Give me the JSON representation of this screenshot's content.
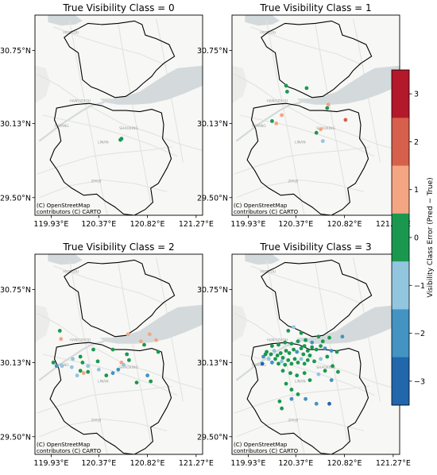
{
  "attribution": [
    "(C) OpenStreetMap",
    "contributors (C) CARTO"
  ],
  "x_ticks": [
    "119.93°E",
    "120.37°E",
    "120.82°E",
    "121.27°E"
  ],
  "y_ticks": [
    "30.75°N",
    "30.13°N",
    "29.50°N"
  ],
  "map_labels": [
    "HUZHOU",
    "HANGZHOU",
    "SHAOXING",
    "FUYANG",
    "LINAN",
    "ZHUJI"
  ],
  "panels": [
    {
      "title": "True Visibility Class = 0",
      "points": [
        [
          120.57,
          29.99,
          0
        ],
        [
          120.58,
          30.0,
          0
        ]
      ]
    },
    {
      "title": "True Visibility Class = 1",
      "points": [
        [
          120.28,
          30.45,
          0
        ],
        [
          120.29,
          30.4,
          0
        ],
        [
          120.47,
          30.43,
          0
        ],
        [
          120.15,
          30.15,
          0
        ],
        [
          120.19,
          30.13,
          1
        ],
        [
          120.24,
          30.2,
          1
        ],
        [
          120.66,
          30.26,
          0
        ],
        [
          120.67,
          30.29,
          1
        ],
        [
          120.83,
          30.16,
          2
        ],
        [
          120.56,
          30.05,
          0
        ],
        [
          120.6,
          30.08,
          1
        ],
        [
          120.62,
          29.98,
          -1
        ]
      ]
    },
    {
      "title": "True Visibility Class = 2",
      "points": [
        [
          120.01,
          30.4,
          0
        ],
        [
          120.02,
          30.33,
          1
        ],
        [
          120.64,
          30.37,
          1
        ],
        [
          120.84,
          30.37,
          1
        ],
        [
          120.76,
          30.31,
          1
        ],
        [
          120.79,
          30.28,
          0
        ],
        [
          120.92,
          30.22,
          0
        ],
        [
          120.9,
          30.32,
          1
        ],
        [
          120.5,
          30.24,
          0
        ],
        [
          120.63,
          30.2,
          0
        ],
        [
          120.2,
          30.18,
          0
        ],
        [
          120.22,
          30.13,
          0
        ],
        [
          120.32,
          30.24,
          0
        ],
        [
          120.36,
          30.14,
          0
        ],
        [
          120.13,
          30.16,
          -1
        ],
        [
          119.95,
          30.13,
          0
        ],
        [
          119.98,
          30.1,
          -2
        ],
        [
          120.03,
          30.1,
          -1
        ],
        [
          120.12,
          30.09,
          -1
        ],
        [
          120.2,
          30.06,
          0
        ],
        [
          120.23,
          30.04,
          1
        ],
        [
          120.17,
          30.02,
          -1
        ],
        [
          120.27,
          30.1,
          -1
        ],
        [
          120.27,
          30.05,
          0
        ],
        [
          120.37,
          30.07,
          -1
        ],
        [
          120.44,
          30.02,
          0
        ],
        [
          120.5,
          30.04,
          -2
        ],
        [
          120.55,
          30.07,
          -2
        ],
        [
          120.58,
          30.13,
          1
        ],
        [
          120.6,
          30.11,
          -1
        ],
        [
          120.65,
          30.15,
          0
        ],
        [
          120.72,
          29.96,
          0
        ],
        [
          120.82,
          30.02,
          -2
        ],
        [
          120.85,
          29.97,
          0
        ]
      ]
    },
    {
      "title": "True Visibility Class = 3",
      "points": [
        [
          120.1,
          30.22,
          0
        ],
        [
          120.14,
          30.2,
          0
        ],
        [
          120.17,
          30.23,
          -1
        ],
        [
          120.2,
          30.19,
          0
        ],
        [
          120.23,
          30.21,
          0
        ],
        [
          120.25,
          30.17,
          0
        ],
        [
          120.28,
          30.23,
          0
        ],
        [
          120.31,
          30.21,
          0
        ],
        [
          120.35,
          30.24,
          0
        ],
        [
          120.38,
          30.22,
          -2
        ],
        [
          120.42,
          30.25,
          0
        ],
        [
          120.45,
          30.27,
          0
        ],
        [
          120.48,
          30.23,
          0
        ],
        [
          120.52,
          30.26,
          0
        ],
        [
          120.56,
          30.24,
          0
        ],
        [
          120.6,
          30.27,
          0
        ],
        [
          120.64,
          30.25,
          -2
        ],
        [
          120.7,
          30.23,
          -2
        ],
        [
          120.75,
          30.22,
          0
        ],
        [
          120.3,
          30.4,
          0
        ],
        [
          120.35,
          30.43,
          -1
        ],
        [
          120.42,
          30.38,
          0
        ],
        [
          120.46,
          30.32,
          0
        ],
        [
          120.52,
          30.3,
          -2
        ],
        [
          120.8,
          30.35,
          -2
        ],
        [
          120.68,
          30.34,
          0
        ],
        [
          120.58,
          30.35,
          0
        ],
        [
          120.62,
          30.31,
          0
        ],
        [
          120.12,
          30.16,
          -1
        ],
        [
          120.15,
          30.13,
          -2
        ],
        [
          120.18,
          30.16,
          0
        ],
        [
          120.21,
          30.12,
          0
        ],
        [
          120.24,
          30.14,
          -1
        ],
        [
          120.27,
          30.11,
          0
        ],
        [
          120.3,
          30.15,
          0
        ],
        [
          120.33,
          30.12,
          0
        ],
        [
          120.36,
          30.16,
          0
        ],
        [
          120.39,
          30.13,
          0
        ],
        [
          120.42,
          30.16,
          -1
        ],
        [
          120.45,
          30.12,
          0
        ],
        [
          120.48,
          30.15,
          0
        ],
        [
          120.06,
          30.12,
          -3
        ],
        [
          120.07,
          30.18,
          -2
        ],
        [
          120.09,
          30.2,
          0
        ],
        [
          120.15,
          30.27,
          0
        ],
        [
          120.21,
          30.28,
          0
        ],
        [
          120.27,
          30.3,
          0
        ],
        [
          120.33,
          30.29,
          0
        ],
        [
          120.39,
          30.31,
          0
        ],
        [
          120.44,
          30.2,
          0
        ],
        [
          120.5,
          30.19,
          0
        ],
        [
          120.54,
          30.14,
          0
        ],
        [
          120.6,
          30.16,
          -1
        ],
        [
          120.66,
          30.18,
          0
        ],
        [
          120.71,
          30.1,
          0
        ],
        [
          120.25,
          30.06,
          0
        ],
        [
          120.32,
          30.04,
          0
        ],
        [
          120.38,
          30.02,
          0
        ],
        [
          120.45,
          30.04,
          0
        ],
        [
          120.5,
          29.98,
          0
        ],
        [
          120.58,
          30.03,
          -1
        ],
        [
          120.64,
          30.06,
          0
        ],
        [
          120.7,
          29.98,
          -2
        ],
        [
          120.76,
          30.05,
          0
        ],
        [
          120.28,
          29.95,
          0
        ],
        [
          120.33,
          29.9,
          0
        ],
        [
          120.22,
          29.8,
          0
        ],
        [
          120.24,
          29.74,
          0
        ],
        [
          120.33,
          29.82,
          -2
        ],
        [
          120.39,
          29.86,
          0
        ],
        [
          120.46,
          29.82,
          -2
        ],
        [
          120.56,
          29.78,
          -2
        ],
        [
          120.68,
          29.78,
          -3
        ]
      ]
    }
  ],
  "colorbar": {
    "label": "Visibility Class Error (Pred − True)",
    "ticks": [
      "3",
      "2",
      "1",
      "0",
      "−1",
      "−2",
      "−3"
    ],
    "colors": {
      "3": "#b3182b",
      "2": "#d6604c",
      "1": "#f4a582",
      "0": "#1a9850",
      "-1": "#92c5de",
      "-2": "#4393c3",
      "-3": "#2266ab"
    }
  },
  "chart_data": {
    "type": "scatter",
    "xlim": [
      119.78,
      121.33
    ],
    "ylim": [
      29.35,
      31.05
    ],
    "x_tick_values": [
      119.93,
      120.37,
      120.82,
      121.27
    ],
    "y_tick_values": [
      30.75,
      30.13,
      29.5
    ],
    "color_range": [
      -3,
      3
    ]
  }
}
